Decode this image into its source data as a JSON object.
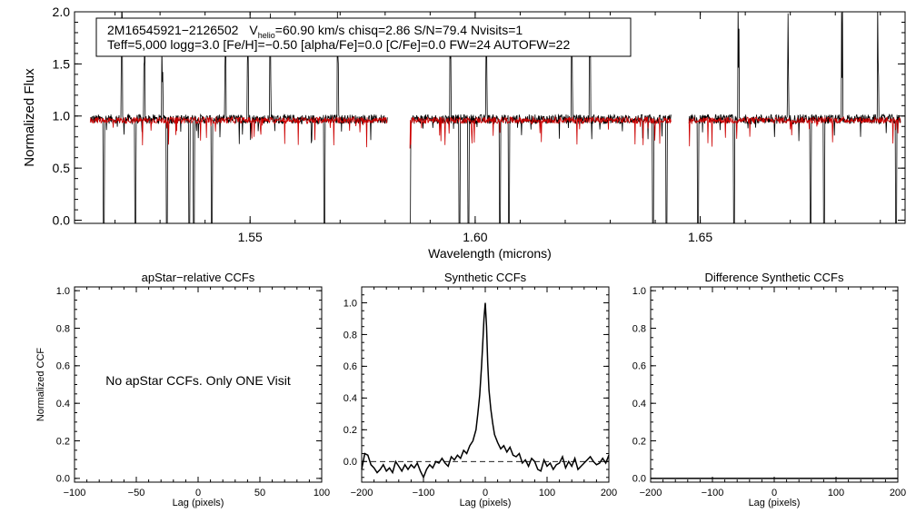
{
  "chart_data": [
    {
      "id": "spectrum",
      "type": "line",
      "xlabel": "Wavelength (microns)",
      "ylabel": "Normalized Flux",
      "xlim": [
        1.511,
        1.6955
      ],
      "ylim": [
        -0.03,
        2.0
      ],
      "xticks": [
        1.55,
        1.6,
        1.65
      ],
      "xtick_labels": [
        "1.55",
        "1.60",
        "1.65"
      ],
      "yticks": [
        0.0,
        0.5,
        1.0,
        1.5,
        2.0
      ],
      "ytick_labels": [
        "0.0",
        "0.5",
        "1.0",
        "1.5",
        "2.0"
      ],
      "info_box": {
        "line1_star": "2M16545921−2126502",
        "line1_v": "V",
        "line1_sub": "helio",
        "line1_rest": "=60.90 km/s  chisq=2.86  S/N=79.4  Nvisits=1",
        "line2": "Teff=5,000 logg=3.0 [Fe/H]=−0.50 [alpha/Fe]=0.0 [C/Fe]=0.0 FW=24 AUTOFW=22"
      },
      "chips": [
        [
          1.5145,
          1.5805
        ],
        [
          1.5855,
          1.6435
        ],
        [
          1.6475,
          1.6945
        ]
      ],
      "spikes_up": [
        1.5215,
        1.5265,
        1.5305,
        1.5445,
        1.5495,
        1.5545,
        1.5695,
        1.5945,
        1.6025,
        1.6075,
        1.6215,
        1.6255,
        1.6395,
        1.6495,
        1.6585,
        1.6695,
        1.6815,
        1.6895
      ],
      "spikes_down": [
        1.5175,
        1.5245,
        1.5315,
        1.5365,
        1.5375,
        1.5415,
        1.5665,
        1.5855,
        1.5965,
        1.5985,
        1.6055,
        1.6075,
        1.6395,
        1.6425,
        1.6495,
        1.6575,
        1.6745,
        1.6775,
        1.6935
      ],
      "series": [
        {
          "name": "observed",
          "color": "#000000",
          "continuum": 0.97
        },
        {
          "name": "model",
          "color": "#cc0000",
          "continuum": 0.96
        }
      ]
    },
    {
      "id": "ccf_apstar",
      "type": "line",
      "title": "apStar−relative CCFs",
      "xlabel": "Lag (pixels)",
      "ylabel": "Normalized CCF",
      "xlim": [
        -100,
        100
      ],
      "ylim": [
        -0.02,
        1.02
      ],
      "xticks": [
        -100,
        -50,
        0,
        50,
        100
      ],
      "xtick_labels": [
        "−100",
        "−50",
        "0",
        "50",
        "100"
      ],
      "yticks": [
        0.0,
        0.2,
        0.4,
        0.6,
        0.8,
        1.0
      ],
      "ytick_labels": [
        "0.0",
        "0.2",
        "0.4",
        "0.6",
        "0.8",
        "1.0"
      ],
      "message": "No apStar CCFs.  Only ONE Visit"
    },
    {
      "id": "ccf_synthetic",
      "type": "line",
      "title": "Synthetic CCFs",
      "xlabel": "Lag (pixels)",
      "ylabel": "",
      "xlim": [
        -200,
        200
      ],
      "ylim": [
        -0.13,
        1.1
      ],
      "xticks": [
        -200,
        -100,
        0,
        100,
        200
      ],
      "xtick_labels": [
        "−200",
        "−100",
        "0",
        "100",
        "200"
      ],
      "yticks": [
        0.0,
        0.2,
        0.4,
        0.6,
        0.8,
        1.0
      ],
      "ytick_labels": [
        "0.0",
        "0.2",
        "0.4",
        "0.6",
        "0.8",
        "1.0"
      ],
      "baseline": 0.0,
      "series": [
        {
          "name": "CCF",
          "x": [
            -200,
            -195,
            -190,
            -185,
            -180,
            -175,
            -170,
            -165,
            -160,
            -155,
            -150,
            -145,
            -140,
            -135,
            -130,
            -125,
            -120,
            -115,
            -110,
            -105,
            -100,
            -95,
            -90,
            -85,
            -80,
            -75,
            -70,
            -65,
            -60,
            -55,
            -50,
            -45,
            -40,
            -35,
            -30,
            -25,
            -20,
            -15,
            -12,
            -9,
            -6,
            -4,
            -2,
            0,
            2,
            4,
            6,
            9,
            12,
            15,
            20,
            25,
            30,
            35,
            40,
            45,
            50,
            55,
            60,
            65,
            70,
            75,
            80,
            85,
            90,
            95,
            100,
            105,
            110,
            115,
            120,
            125,
            130,
            135,
            140,
            145,
            150,
            155,
            160,
            165,
            170,
            175,
            180,
            185,
            190,
            195,
            200
          ],
          "values": [
            -0.05,
            0.05,
            0.04,
            -0.02,
            -0.04,
            -0.07,
            -0.05,
            -0.02,
            -0.06,
            -0.04,
            -0.07,
            0.0,
            -0.03,
            -0.06,
            -0.02,
            -0.05,
            -0.02,
            -0.04,
            -0.01,
            -0.06,
            -0.1,
            -0.05,
            -0.02,
            -0.04,
            0.0,
            -0.01,
            0.02,
            -0.01,
            -0.03,
            0.03,
            0.01,
            0.04,
            0.02,
            0.07,
            0.05,
            0.1,
            0.13,
            0.2,
            0.3,
            0.42,
            0.6,
            0.75,
            0.9,
            1.0,
            0.85,
            0.62,
            0.45,
            0.33,
            0.24,
            0.17,
            0.12,
            0.08,
            0.1,
            0.06,
            0.09,
            0.04,
            0.03,
            0.05,
            -0.01,
            0.01,
            -0.03,
            0.02,
            0.0,
            -0.05,
            -0.06,
            0.01,
            -0.03,
            -0.01,
            -0.05,
            -0.02,
            -0.01,
            0.03,
            -0.04,
            0.0,
            -0.03,
            0.02,
            -0.05,
            -0.03,
            -0.01,
            0.01,
            0.03,
            0.0,
            -0.02,
            -0.01,
            0.02,
            -0.01,
            0.04
          ]
        }
      ]
    },
    {
      "id": "ccf_difference",
      "type": "line",
      "title": "Difference Synthetic CCFs",
      "xlabel": "Lag (pixels)",
      "ylabel": "",
      "xlim": [
        -200,
        200
      ],
      "ylim": [
        -0.02,
        1.02
      ],
      "xticks": [
        -200,
        -100,
        0,
        100,
        200
      ],
      "xtick_labels": [
        "−200",
        "−100",
        "0",
        "100",
        "200"
      ],
      "yticks": [
        0.0,
        0.2,
        0.4,
        0.6,
        0.8,
        1.0
      ],
      "ytick_labels": [
        "0.0",
        "0.2",
        "0.4",
        "0.6",
        "0.8",
        "1.0"
      ],
      "series": [
        {
          "name": "difference",
          "x": [
            -200,
            200
          ],
          "values": [
            0.0,
            0.0
          ]
        }
      ]
    }
  ]
}
